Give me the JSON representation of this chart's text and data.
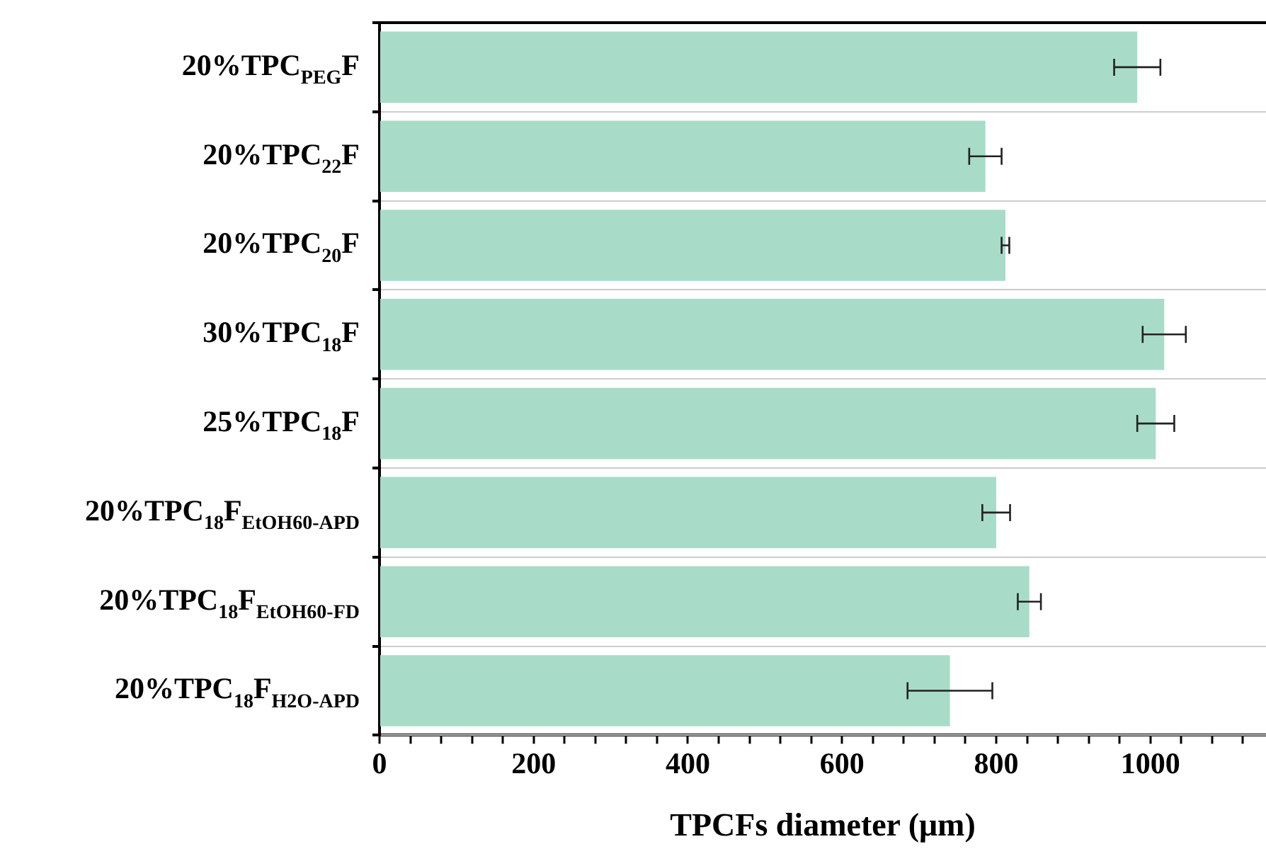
{
  "chart_data": {
    "type": "bar",
    "orientation": "horizontal",
    "xlabel": "TPCFs diameter (μm)",
    "categories": [
      "20%TPC$_{PEG}$F",
      "20%TPC$_{22}$F",
      "20%TPC$_{20}$F",
      "30%TPC$_{18}$F",
      "25%TPC$_{18}$F",
      "20%TPC$_{18}$F$_{EtOH60-APD}$",
      "20%TPC$_{18}$F$_{EtOH60-FD}$",
      "20%TPC$_{18}$F$_{H2O-APD}$"
    ],
    "values": [
      983,
      786,
      812,
      1018,
      1007,
      800,
      843,
      740
    ],
    "errors": [
      30,
      21,
      5,
      28,
      24,
      18,
      15,
      55
    ],
    "color": "#a8dcc8",
    "xlim": [
      0,
      1150
    ],
    "xticks": [
      0,
      {
        "value": 40,
        "label": null
      },
      {
        "value": 80,
        "label": null
      },
      {
        "value": 120,
        "label": null
      },
      {
        "value": 160,
        "label": null
      },
      200,
      {
        "value": 240,
        "label": null
      },
      {
        "value": 280,
        "label": null
      },
      {
        "value": 320,
        "label": null
      },
      {
        "value": 360,
        "label": null
      },
      400,
      {
        "value": 440,
        "label": null
      },
      {
        "value": 480,
        "label": null
      },
      {
        "value": 520,
        "label": null
      },
      {
        "value": 560,
        "label": null
      },
      600,
      {
        "value": 640,
        "label": null
      },
      {
        "value": 680,
        "label": null
      },
      {
        "value": 720,
        "label": null
      },
      {
        "value": 760,
        "label": null
      },
      800,
      {
        "value": 840,
        "label": null
      },
      {
        "value": 880,
        "label": null
      },
      {
        "value": 920,
        "label": null
      },
      {
        "value": 960,
        "label": null
      },
      1000,
      {
        "value": 1040,
        "label": null
      },
      {
        "value": 1080,
        "label": null
      },
      {
        "value": 1120,
        "label": null
      }
    ],
    "grid": "y",
    "legend": false
  }
}
